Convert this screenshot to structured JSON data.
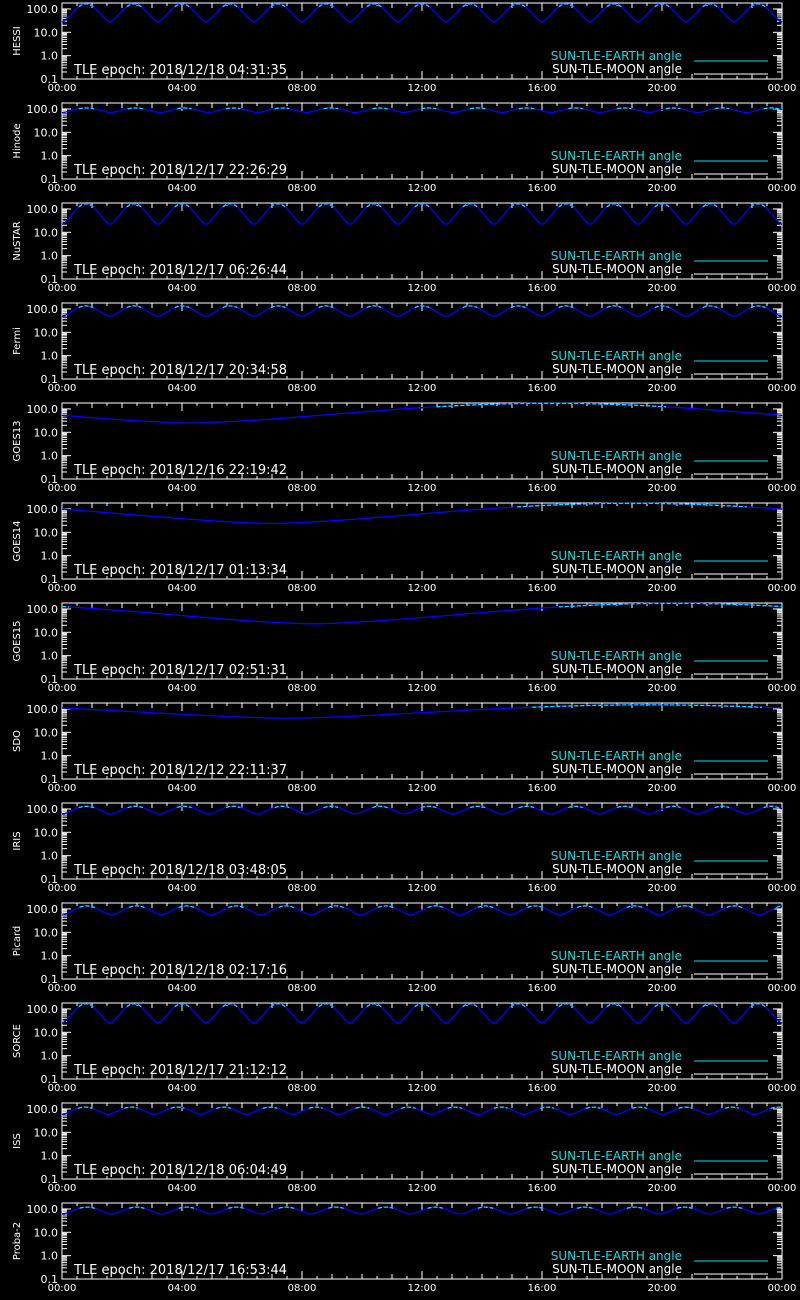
{
  "colors": {
    "background": "#000000",
    "axes": "#ffffff",
    "earth_angle_in_sun": "#00e5e5",
    "earth_angle_in_shadow": "#0000ff",
    "moon_angle": "#ffffff"
  },
  "legend": {
    "earth_label": "SUN-TLE-EARTH angle",
    "moon_label": "SUN-TLE-MOON angle",
    "placement": "bottom-right"
  },
  "axes": {
    "x_ticks": [
      "00:00",
      "04:00",
      "08:00",
      "12:00",
      "16:00",
      "20:00",
      "00:00"
    ],
    "y_ticks": [
      "100.0",
      "10.0",
      "1.0",
      "0.1"
    ],
    "y_scale": "log",
    "ylim": [
      0.1,
      180
    ],
    "xlim_hours": [
      0,
      24
    ]
  },
  "chart_data": [
    {
      "type": "line",
      "ylabel": "HESSI",
      "epoch_label": "TLE epoch: 2018/12/18 04:31:35",
      "series": [
        {
          "name": "SUN-TLE-EARTH angle",
          "period_hours": 1.6,
          "min": 28,
          "max": 165,
          "phase_hours": 0.0
        }
      ]
    },
    {
      "type": "line",
      "ylabel": "Hinode",
      "epoch_label": "TLE epoch: 2018/12/17 22:26:29",
      "series": [
        {
          "name": "SUN-TLE-EARTH angle",
          "period_hours": 1.63,
          "min": 70,
          "max": 110,
          "phase_hours": 0.0
        }
      ]
    },
    {
      "type": "line",
      "ylabel": "NuSTAR",
      "epoch_label": "TLE epoch: 2018/12/17 06:26:44",
      "series": [
        {
          "name": "SUN-TLE-EARTH angle",
          "period_hours": 1.6,
          "min": 22,
          "max": 168,
          "phase_hours": 0.0
        }
      ]
    },
    {
      "type": "line",
      "ylabel": "Fermi",
      "epoch_label": "TLE epoch: 2018/12/17 20:34:58",
      "series": [
        {
          "name": "SUN-TLE-EARTH angle",
          "period_hours": 1.6,
          "min": 48,
          "max": 135,
          "phase_hours": 0.0
        }
      ]
    },
    {
      "type": "line",
      "ylabel": "GOES13",
      "epoch_label": "TLE epoch: 2018/12/16 22:19:42",
      "series": [
        {
          "name": "SUN-TLE-EARTH angle",
          "period_hours": 24,
          "min": 25,
          "max": 175,
          "phase_hours": 4.3
        }
      ]
    },
    {
      "type": "line",
      "ylabel": "GOES14",
      "epoch_label": "TLE epoch: 2018/12/17 01:13:34",
      "series": [
        {
          "name": "SUN-TLE-EARTH angle",
          "period_hours": 24,
          "min": 24,
          "max": 175,
          "phase_hours": 7.0
        }
      ]
    },
    {
      "type": "line",
      "ylabel": "GOES15",
      "epoch_label": "TLE epoch: 2018/12/17 02:51:31",
      "series": [
        {
          "name": "SUN-TLE-EARTH angle",
          "period_hours": 24,
          "min": 23,
          "max": 175,
          "phase_hours": 8.4
        }
      ]
    },
    {
      "type": "line",
      "ylabel": "SDO",
      "epoch_label": "TLE epoch: 2018/12/12 22:11:37",
      "series": [
        {
          "name": "SUN-TLE-EARTH angle",
          "period_hours": 24,
          "min": 40,
          "max": 150,
          "phase_hours": 7.5
        }
      ]
    },
    {
      "type": "line",
      "ylabel": "IRIS",
      "epoch_label": "TLE epoch: 2018/12/18 03:48:05",
      "series": [
        {
          "name": "SUN-TLE-EARTH angle",
          "period_hours": 1.63,
          "min": 60,
          "max": 130,
          "phase_hours": 0.0
        }
      ]
    },
    {
      "type": "line",
      "ylabel": "Picard",
      "epoch_label": "TLE epoch: 2018/12/18 02:17:16",
      "series": [
        {
          "name": "SUN-TLE-EARTH angle",
          "period_hours": 1.66,
          "min": 55,
          "max": 135,
          "phase_hours": 0.0
        }
      ]
    },
    {
      "type": "line",
      "ylabel": "SORCE",
      "epoch_label": "TLE epoch: 2018/12/17 21:12:12",
      "series": [
        {
          "name": "SUN-TLE-EARTH angle",
          "period_hours": 1.6,
          "min": 25,
          "max": 168,
          "phase_hours": 0.0
        }
      ]
    },
    {
      "type": "line",
      "ylabel": "ISS",
      "epoch_label": "TLE epoch: 2018/12/18 06:04:49",
      "series": [
        {
          "name": "SUN-TLE-EARTH angle",
          "period_hours": 1.54,
          "min": 58,
          "max": 120,
          "phase_hours": 0.0
        }
      ]
    },
    {
      "type": "line",
      "ylabel": "Proba-2",
      "epoch_label": "TLE epoch: 2018/12/17 16:53:44",
      "series": [
        {
          "name": "SUN-TLE-EARTH angle",
          "period_hours": 1.66,
          "min": 60,
          "max": 120,
          "phase_hours": 0.0
        }
      ]
    }
  ]
}
